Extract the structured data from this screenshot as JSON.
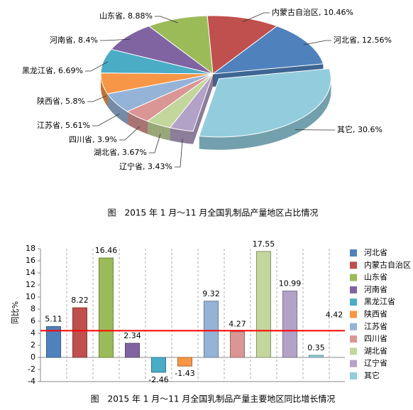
{
  "chart_data": [
    {
      "type": "pie",
      "caption": "图　2015 年 1 月～11 月全国乳制品产量地区占比情况",
      "categories": [
        "河北省",
        "内蒙古自治区",
        "山东省",
        "河南省",
        "黑龙江省",
        "陕西省",
        "江苏省",
        "四川省",
        "湖北省",
        "辽宁省",
        "其它"
      ],
      "values": [
        12.56,
        10.46,
        8.88,
        8.4,
        6.69,
        5.8,
        5.61,
        3.9,
        3.67,
        3.43,
        30.6
      ],
      "value_labels": [
        "12.56%",
        "10.46%",
        "8.88%",
        "8.4%",
        "6.69%",
        "5.8%",
        "5.61%",
        "3.9%",
        "3.67%",
        "3.43%",
        "30.6%"
      ],
      "colors": [
        "#4f81bd",
        "#c0504d",
        "#9bbb59",
        "#8064a2",
        "#4bacc6",
        "#f79646",
        "#95b3d7",
        "#d99694",
        "#c3d69b",
        "#b3a2c7",
        "#93cddd"
      ]
    },
    {
      "type": "bar",
      "caption": "图　2015 年 1 月～11 月全国乳制品产量主要地区同比增长情况",
      "ylabel": "同比%",
      "categories": [
        "河北省",
        "内蒙古自治区",
        "山东省",
        "河南省",
        "黑龙江省",
        "陕西省",
        "江苏省",
        "四川省",
        "湖北省",
        "辽宁省",
        "其它"
      ],
      "values": [
        5.11,
        8.22,
        16.46,
        2.34,
        -2.46,
        -1.43,
        9.32,
        4.27,
        17.55,
        10.99,
        0.35
      ],
      "colors": [
        "#4f81bd",
        "#c0504d",
        "#9bbb59",
        "#8064a2",
        "#4bacc6",
        "#f79646",
        "#95b3d7",
        "#d99694",
        "#c3d69b",
        "#b3a2c7",
        "#93cddd"
      ],
      "ylim": [
        -4,
        18
      ],
      "yticks": [
        -4,
        -2,
        0,
        2,
        4,
        6,
        8,
        10,
        12,
        14,
        16,
        18
      ],
      "reference_line": {
        "value": 4.42,
        "color": "#ff0000"
      },
      "legend": "right"
    }
  ]
}
